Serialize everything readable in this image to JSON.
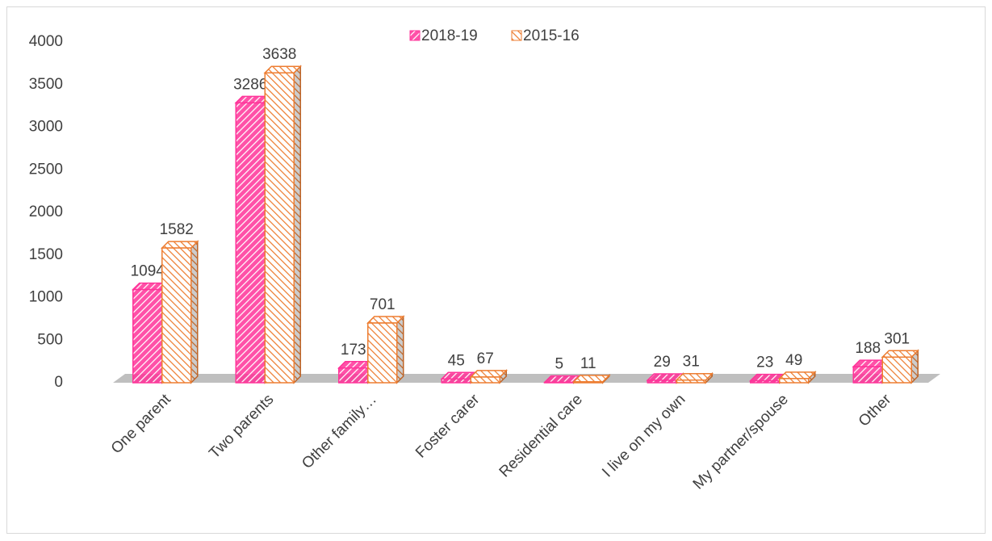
{
  "chart_data": {
    "type": "bar",
    "categories": [
      "One parent",
      "Two parents",
      "Other family…",
      "Foster carer",
      "Residential care",
      "I live on my own",
      "My partner/spouse",
      "Other"
    ],
    "series": [
      {
        "name": "2018-19",
        "color": "#ff3399",
        "values": [
          1094,
          3286,
          173,
          45,
          5,
          29,
          23,
          188
        ]
      },
      {
        "name": "2015-16",
        "color": "#ed7d31",
        "values": [
          1582,
          3638,
          701,
          67,
          11,
          31,
          49,
          301
        ]
      }
    ],
    "ylim": [
      0,
      4000
    ],
    "yticks": [
      0,
      500,
      1000,
      1500,
      2000,
      2500,
      3000,
      3500,
      4000
    ],
    "grid": false,
    "legend": "top"
  }
}
